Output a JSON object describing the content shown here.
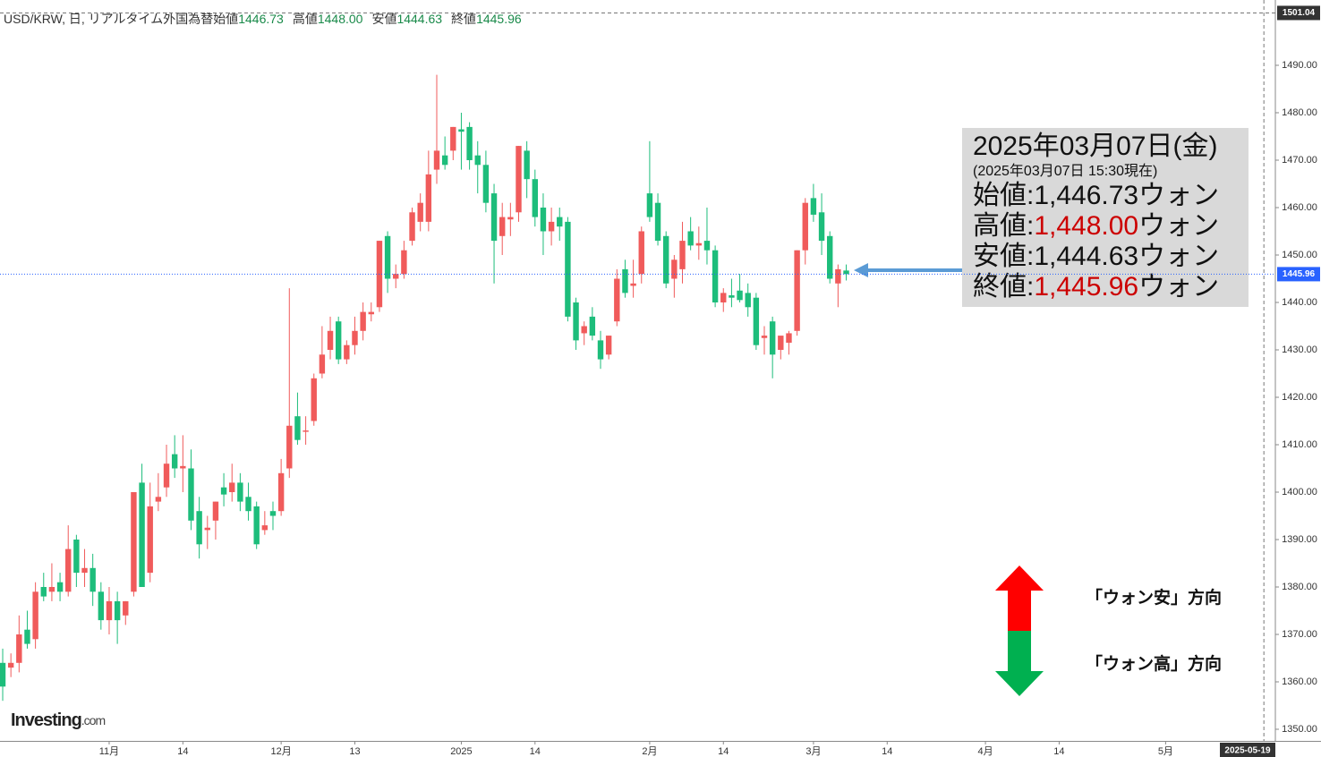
{
  "header": {
    "title": "USD/KRW, 日, リアルタイム外国為替",
    "fields": [
      {
        "label": "始値",
        "value": "1446.73"
      },
      {
        "label": "高値",
        "value": "1448.00"
      },
      {
        "label": "安値",
        "value": "1444.63"
      },
      {
        "label": "終値",
        "value": "1445.96"
      }
    ]
  },
  "logo": {
    "brand": "Investing",
    "suffix": ".com"
  },
  "info_box": {
    "date": "2025年03月07日(金)",
    "note": "(2025年03月07日 15:30現在)",
    "rows": [
      {
        "label": "始値:",
        "value": "1,446.73",
        "unit": "ウォン",
        "color": "#111111"
      },
      {
        "label": "高値:",
        "value": "1,448.00",
        "unit": "ウォン",
        "color": "#cc0000"
      },
      {
        "label": "安値:",
        "value": "1,444.63",
        "unit": "ウォン",
        "color": "#111111"
      },
      {
        "label": "終値:",
        "value": "1,445.96",
        "unit": "ウォン",
        "color": "#cc0000"
      }
    ]
  },
  "legend_arrows": {
    "up": "「ウォン安」方向",
    "down": "「ウォン高」方向"
  },
  "chart_data": {
    "type": "candlestick",
    "up_color": "#f05b5b",
    "down_color": "#1dbd7b",
    "x": [
      0,
      1,
      2,
      3,
      4,
      5,
      6,
      7,
      8,
      9,
      10,
      11,
      12,
      13,
      14,
      15,
      16,
      17,
      18,
      19,
      20,
      21,
      22,
      23,
      24,
      25,
      26,
      27,
      28,
      29,
      30,
      31,
      32,
      33,
      34,
      35,
      36,
      37,
      38,
      39,
      40,
      41,
      42,
      43,
      44,
      45,
      46,
      47,
      48,
      49,
      50,
      51,
      52,
      53,
      54,
      55,
      56,
      57,
      58,
      59,
      60,
      61,
      62,
      63,
      64,
      65,
      66,
      67,
      68,
      69,
      70,
      71,
      72,
      73,
      74,
      75,
      76,
      77,
      78,
      79,
      80,
      81,
      82,
      83,
      84,
      85,
      86,
      87,
      88,
      89,
      90,
      91,
      92,
      93,
      94,
      95,
      96,
      97,
      98,
      99,
      100,
      101,
      102,
      103
    ],
    "open": [
      1364,
      1363,
      1364,
      1371,
      1369,
      1380,
      1379,
      1381,
      1379,
      1390,
      1383,
      1384,
      1379,
      1373,
      1377,
      1374,
      1379,
      1402,
      1383,
      1398,
      1401,
      1408,
      1405,
      1405,
      1396,
      1392,
      1394,
      1401,
      1400,
      1402,
      1399,
      1397,
      1392,
      1396,
      1396,
      1405,
      1416,
      1413,
      1415,
      1425,
      1430,
      1436,
      1428,
      1431,
      1434,
      1437.5,
      1439,
      1454,
      1445,
      1446,
      1453,
      1457,
      1457,
      1468,
      1471,
      1472,
      1476.5,
      1477,
      1471,
      1469,
      1463,
      1454,
      1457.5,
      1459,
      1472,
      1466,
      1460,
      1455,
      1458,
      1457,
      1440,
      1433.5,
      1437,
      1432,
      1429,
      1436,
      1447,
      1443.5,
      1446,
      1463,
      1461,
      1454,
      1445,
      1447,
      1455,
      1452,
      1453,
      1451,
      1440,
      1441.5,
      1442.5,
      1442,
      1441,
      1432.5,
      1436,
      1430,
      1431.5,
      1434,
      1451,
      1462,
      1459,
      1454,
      1444,
      1446.73
    ],
    "high": [
      1367,
      1366,
      1374,
      1375,
      1381,
      1383,
      1385,
      1383,
      1393,
      1391,
      1388,
      1387,
      1381,
      1380,
      1379,
      1377,
      1400,
      1406,
      1402,
      1404,
      1410,
      1412,
      1412,
      1409,
      1399,
      1395,
      1398,
      1404,
      1406,
      1404,
      1402,
      1398,
      1396,
      1398,
      1407,
      1443,
      1421,
      1416,
      1425,
      1435,
      1437,
      1437,
      1432,
      1437,
      1440,
      1440,
      1453,
      1455,
      1448,
      1453,
      1460,
      1463,
      1472,
      1488,
      1475,
      1477,
      1480,
      1478,
      1474,
      1472,
      1465,
      1461,
      1461,
      1473,
      1474,
      1468,
      1463,
      1460,
      1460,
      1458,
      1441,
      1436,
      1439,
      1434,
      1433,
      1447,
      1449,
      1449,
      1456,
      1474,
      1463,
      1455,
      1450,
      1457,
      1458,
      1456,
      1460,
      1452,
      1443,
      1445,
      1446,
      1444,
      1442,
      1435,
      1437,
      1432,
      1434,
      1451,
      1462,
      1465,
      1463,
      1455,
      1448,
      1448.0
    ],
    "low": [
      1356,
      1361,
      1362,
      1367,
      1367,
      1377,
      1377,
      1377,
      1378,
      1380,
      1380,
      1376,
      1371,
      1370,
      1368,
      1372,
      1378,
      1380,
      1381,
      1396,
      1399,
      1403,
      1400,
      1392,
      1386,
      1388,
      1390,
      1397,
      1398,
      1396,
      1394,
      1388,
      1391,
      1392,
      1395,
      1403,
      1410,
      1410,
      1414,
      1424,
      1428,
      1427,
      1427,
      1429,
      1432,
      1436,
      1438,
      1442,
      1443,
      1445,
      1452,
      1455,
      1455,
      1465,
      1468,
      1470,
      1468,
      1468,
      1463,
      1459,
      1444,
      1450,
      1454,
      1457,
      1462,
      1456,
      1450,
      1452,
      1453,
      1436,
      1430,
      1431,
      1432,
      1426,
      1428,
      1435,
      1441,
      1441,
      1444,
      1457,
      1452,
      1443,
      1441,
      1444,
      1451,
      1449,
      1448,
      1439,
      1438,
      1439,
      1440,
      1437,
      1430,
      1429,
      1424,
      1428,
      1429,
      1433,
      1448,
      1457,
      1450,
      1444,
      1439,
      1444.63
    ],
    "close": [
      1359,
      1364,
      1370,
      1368,
      1379,
      1378,
      1380,
      1379,
      1388,
      1383,
      1384,
      1379,
      1373,
      1377,
      1373,
      1377,
      1400,
      1380,
      1397,
      1399,
      1406,
      1405,
      1405.5,
      1394,
      1389,
      1392.5,
      1398,
      1399.5,
      1402,
      1398,
      1396,
      1389,
      1393,
      1395,
      1404,
      1414,
      1411,
      1413,
      1424,
      1429,
      1434,
      1428,
      1431,
      1434,
      1438,
      1438,
      1453,
      1445,
      1446,
      1451,
      1459,
      1461,
      1467,
      1472,
      1469,
      1477,
      1476,
      1470,
      1469,
      1461,
      1453,
      1458,
      1458,
      1473,
      1466,
      1458,
      1455,
      1457,
      1456,
      1437,
      1432,
      1435,
      1433,
      1428,
      1433,
      1445,
      1442,
      1444,
      1455,
      1458,
      1453,
      1444,
      1449,
      1453,
      1452,
      1452.5,
      1451,
      1440,
      1442,
      1441,
      1440.5,
      1439,
      1431,
      1433,
      1429,
      1433,
      1433.5,
      1451,
      1461,
      1458.5,
      1453,
      1445,
      1447,
      1445.96
    ],
    "xlim": [
      -0.33,
      155.4
    ],
    "ylim": [
      1347.5,
      1503.77
    ],
    "xticks": [
      {
        "value": 13,
        "label": "11月"
      },
      {
        "value": 22,
        "label": "14"
      },
      {
        "value": 34,
        "label": "12月"
      },
      {
        "value": 43,
        "label": "13"
      },
      {
        "value": 56,
        "label": "2025"
      },
      {
        "value": 65,
        "label": "14"
      },
      {
        "value": 79,
        "label": "2月"
      },
      {
        "value": 88,
        "label": "14"
      },
      {
        "value": 99,
        "label": "3月"
      },
      {
        "value": 108,
        "label": "14"
      },
      {
        "value": 120,
        "label": "4月"
      },
      {
        "value": 129,
        "label": "14"
      },
      {
        "value": 142,
        "label": "5月"
      }
    ],
    "yticks": [
      {
        "value": 1350,
        "label": "1350.00"
      },
      {
        "value": 1360,
        "label": "1360.00"
      },
      {
        "value": 1370,
        "label": "1370.00"
      },
      {
        "value": 1380,
        "label": "1380.00"
      },
      {
        "value": 1390,
        "label": "1390.00"
      },
      {
        "value": 1400,
        "label": "1400.00"
      },
      {
        "value": 1410,
        "label": "1410.00"
      },
      {
        "value": 1420,
        "label": "1420.00"
      },
      {
        "value": 1430,
        "label": "1430.00"
      },
      {
        "value": 1440,
        "label": "1440.00"
      },
      {
        "value": 1450,
        "label": "1450.00"
      },
      {
        "value": 1460,
        "label": "1460.00"
      },
      {
        "value": 1470,
        "label": "1470.00"
      },
      {
        "value": 1480,
        "label": "1480.00"
      },
      {
        "value": 1490,
        "label": "1490.00"
      }
    ],
    "price_line": {
      "value": 1445.96,
      "label": "1445.96",
      "color": "#2962ff"
    },
    "top_marker": {
      "value": 1501.04,
      "label": "1501.04"
    },
    "x_marker": {
      "value": 154,
      "label": "2025-05-19"
    }
  }
}
